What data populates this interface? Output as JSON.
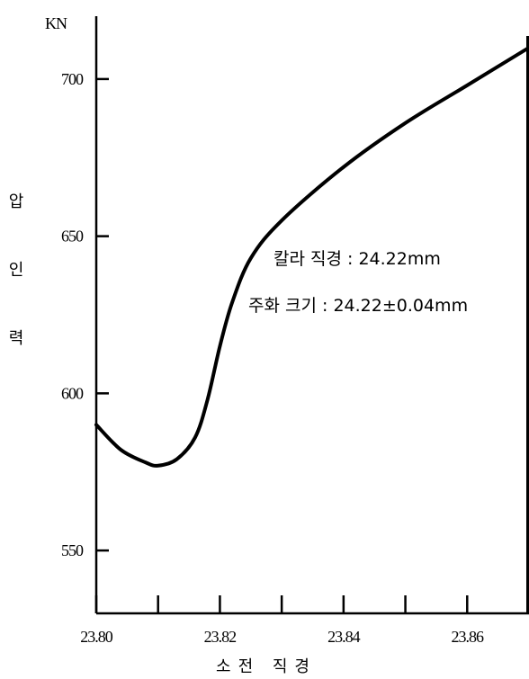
{
  "chart_data": {
    "type": "line",
    "y_unit": "KN",
    "ylabel": "압인력",
    "xlabel": "소전 직경",
    "xlim": [
      23.8,
      23.87
    ],
    "ylim": [
      530,
      720
    ],
    "x_ticks": [
      "23.80",
      "23.82",
      "23.84",
      "23.86"
    ],
    "y_ticks": [
      "550",
      "600",
      "650",
      "700"
    ],
    "x_tick_values": [
      23.8,
      23.82,
      23.84,
      23.86
    ],
    "x_minor_tick_values": [
      23.81,
      23.83,
      23.85
    ],
    "y_tick_values": [
      550,
      600,
      650,
      700
    ],
    "annotations": [
      "칼라 직경 : 24.22mm",
      "주화 크기 : 24.22±0.04mm"
    ],
    "series": [
      {
        "x": [
          23.8,
          23.804,
          23.808,
          23.81,
          23.813,
          23.816,
          23.818,
          23.82,
          23.822,
          23.825,
          23.83,
          23.84,
          23.85,
          23.86,
          23.87
        ],
        "values": [
          590,
          582,
          578,
          577,
          579,
          586,
          598,
          615,
          629,
          643,
          655,
          672,
          686,
          698,
          710
        ],
        "color": "#000000"
      }
    ]
  }
}
